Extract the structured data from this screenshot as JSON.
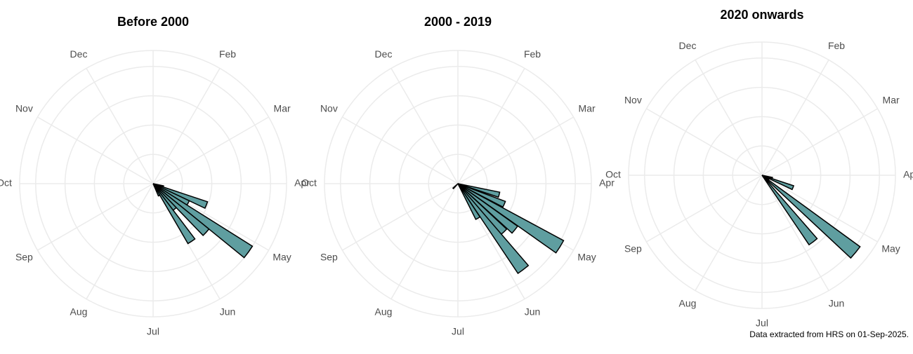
{
  "chart_data": [
    {
      "type": "polar-bar",
      "title": "Before 2000",
      "color": "#5f9ea0",
      "x": [
        3.5,
        3.73,
        3.96,
        4.19,
        4.42,
        4.65,
        4.88,
        5.11
      ],
      "values": [
        8,
        43,
        30,
        88,
        54,
        25,
        52,
        10
      ],
      "ylim": [
        0,
        100
      ],
      "yticks": [
        22,
        44,
        66,
        88
      ],
      "xlim": [
        0,
        12
      ],
      "xticks": [
        {
          "value": 1,
          "label": "Feb"
        },
        {
          "value": 2,
          "label": "Mar"
        },
        {
          "value": 3,
          "label": "Apr"
        },
        {
          "value": 4,
          "label": "May"
        },
        {
          "value": 5,
          "label": "Jun"
        },
        {
          "value": 6,
          "label": "Jul"
        },
        {
          "value": 7,
          "label": "Aug"
        },
        {
          "value": 8,
          "label": "Sep"
        },
        {
          "value": 9,
          "label": "Oct"
        },
        {
          "value": 10,
          "label": "Nov"
        },
        {
          "value": 11,
          "label": "Dec"
        }
      ],
      "grid": true
    },
    {
      "type": "polar-bar",
      "title": "2000 - 2019",
      "color": "#5f9ea0",
      "x": [
        3.5,
        3.8,
        4.06,
        4.3,
        4.55,
        4.76,
        5.0,
        7.5
      ],
      "values": [
        32,
        38,
        90,
        55,
        50,
        81,
        30,
        5
      ],
      "ylim": [
        0,
        100
      ],
      "yticks": [
        22,
        44,
        66,
        88
      ],
      "xlim": [
        0,
        12
      ],
      "xticks": [
        {
          "value": 1,
          "label": "Feb"
        },
        {
          "value": 2,
          "label": "Mar"
        },
        {
          "value": 3,
          "label": "Apr"
        },
        {
          "value": 4,
          "label": "May"
        },
        {
          "value": 5,
          "label": "Jun"
        },
        {
          "value": 6,
          "label": "Jul"
        },
        {
          "value": 7,
          "label": "Aug"
        },
        {
          "value": 8,
          "label": "Sep"
        },
        {
          "value": 9,
          "label": "Oct"
        },
        {
          "value": 10,
          "label": "Nov"
        },
        {
          "value": 11,
          "label": "Dec"
        }
      ],
      "grid": true
    },
    {
      "type": "polar-bar",
      "title": "2020 onwards",
      "color": "#5f9ea0",
      "x": [
        3.5,
        3.73,
        4.0,
        4.32,
        4.5,
        4.75
      ],
      "values": [
        8,
        25,
        6,
        91,
        5,
        63
      ],
      "ylim": [
        0,
        100
      ],
      "yticks": [
        22,
        44,
        66,
        88
      ],
      "xlim": [
        0,
        12
      ],
      "xticks": [
        {
          "value": 1,
          "label": "Feb"
        },
        {
          "value": 2,
          "label": "Mar"
        },
        {
          "value": 3,
          "label": "Apr"
        },
        {
          "value": 4,
          "label": "May"
        },
        {
          "value": 5,
          "label": "Jun"
        },
        {
          "value": 6,
          "label": "Jul"
        },
        {
          "value": 7,
          "label": "Aug"
        },
        {
          "value": 8,
          "label": "Sep"
        },
        {
          "value": 9,
          "label": "Oct"
        },
        {
          "value": 10,
          "label": "Nov"
        },
        {
          "value": 11,
          "label": "Dec"
        }
      ],
      "grid": true
    }
  ],
  "caption": "Data extracted from HRS on 01-Sep-2025."
}
